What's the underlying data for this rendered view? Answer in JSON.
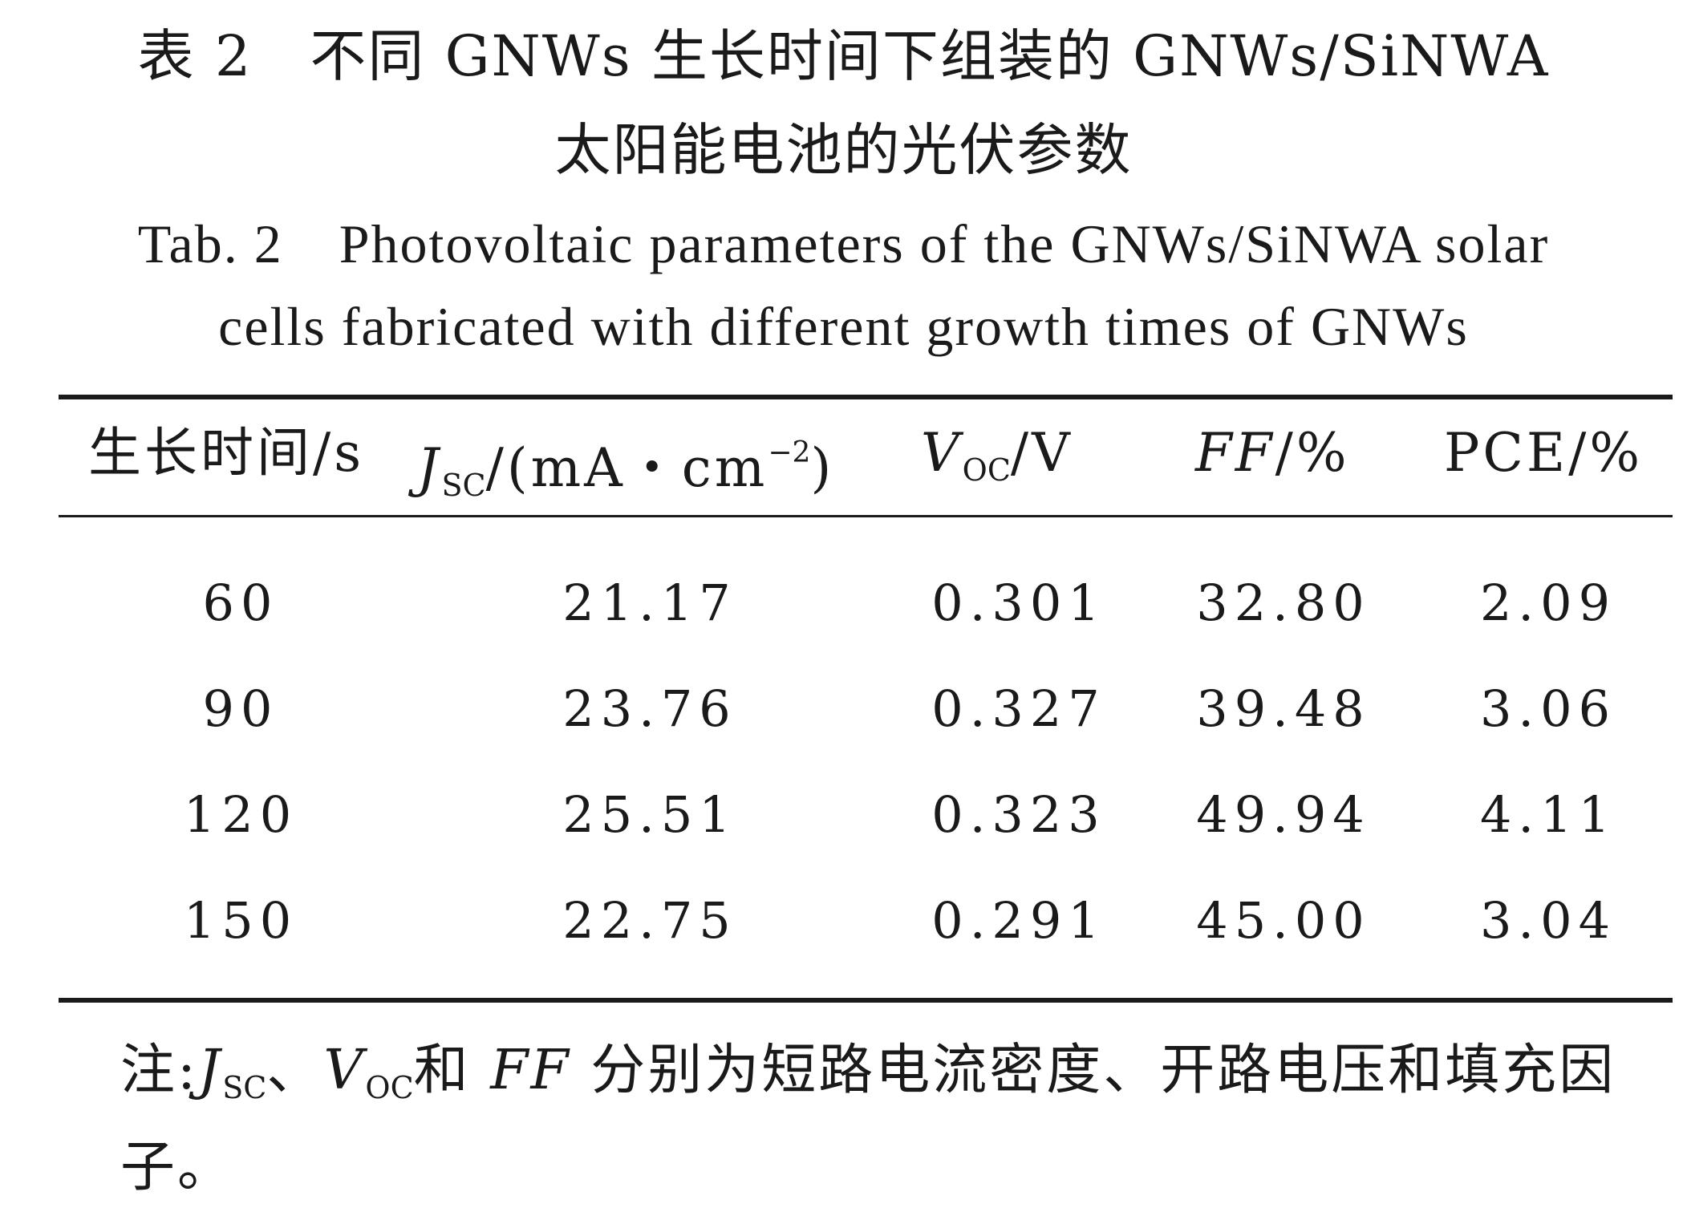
{
  "caption": {
    "zh_line1": "表 2　不同 GNWs 生长时间下组装的 GNWs/SiNWA",
    "zh_line2": "太阳能电池的光伏参数",
    "en_line1": "Tab. 2　Photovoltaic parameters of the GNWs/SiNWA solar",
    "en_line2": "cells fabricated with different growth times of GNWs"
  },
  "table": {
    "headers": {
      "time": "生长时间/s",
      "jsc_symbol": "J",
      "jsc_sub": "SC",
      "jsc_unit": "/(mA・cm",
      "jsc_exp": "−2",
      "jsc_close": ")",
      "voc_symbol": "V",
      "voc_sub": "OC",
      "voc_unit": "/V",
      "ff_symbol": "FF",
      "ff_unit": "/%",
      "pce": "PCE/%"
    },
    "rows": [
      {
        "time": "60",
        "jsc": "21.17",
        "voc": "0.301",
        "ff": "32.80",
        "pce": "2.09"
      },
      {
        "time": "90",
        "jsc": "23.76",
        "voc": "0.327",
        "ff": "39.48",
        "pce": "3.06"
      },
      {
        "time": "120",
        "jsc": "25.51",
        "voc": "0.323",
        "ff": "49.94",
        "pce": "4.11"
      },
      {
        "time": "150",
        "jsc": "22.75",
        "voc": "0.291",
        "ff": "45.00",
        "pce": "3.04"
      }
    ]
  },
  "note": {
    "prefix": "注:",
    "j_symbol": "J",
    "j_sub": "SC",
    "sep": "、",
    "v_symbol": "V",
    "v_sub": "OC",
    "and1": "和 ",
    "ff_symbol": "FF",
    "text": " 分别为短路电流密度、开路电压和填充因子。"
  }
}
